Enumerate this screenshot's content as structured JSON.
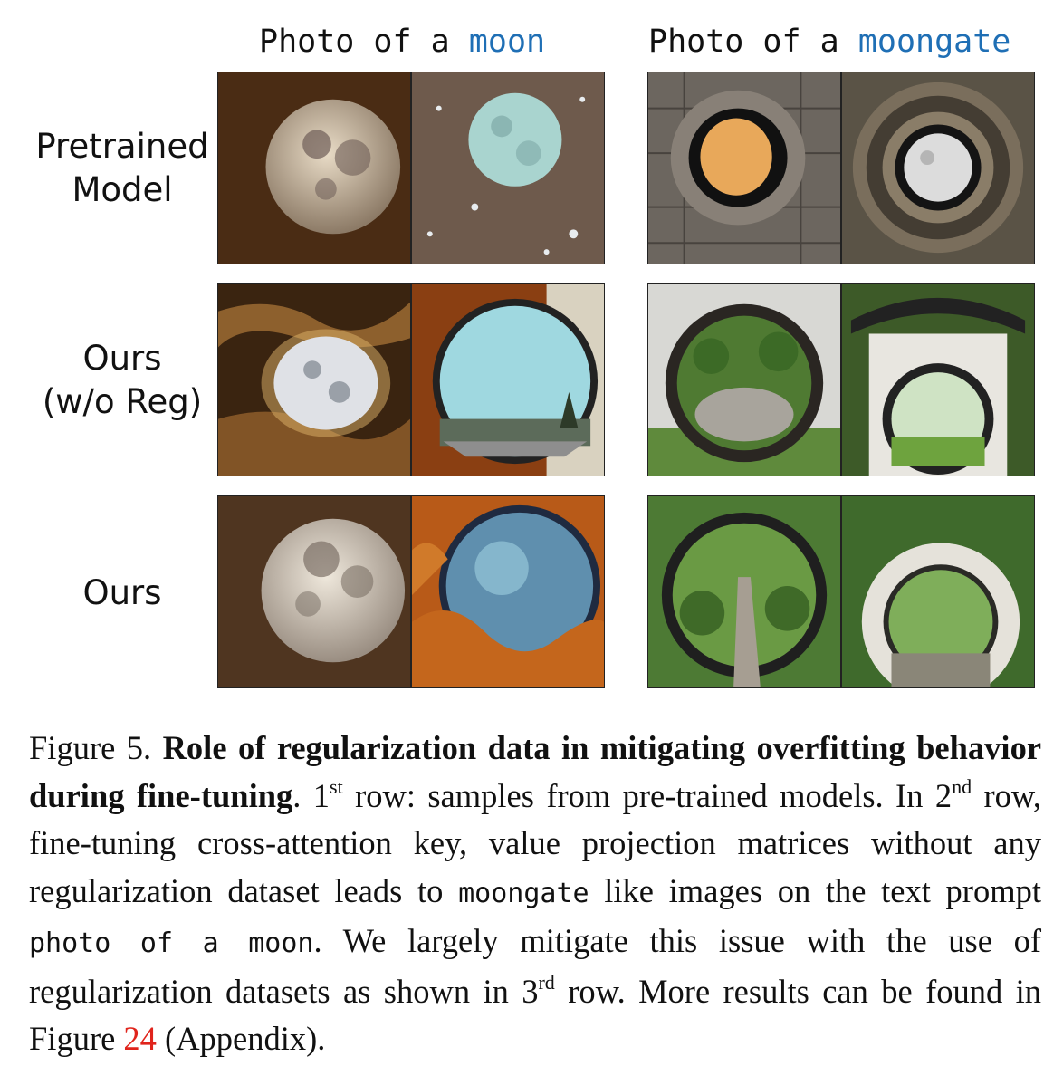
{
  "figure": {
    "columns": [
      {
        "prefix": "Photo of a ",
        "keyword": "moon"
      },
      {
        "prefix": "Photo of a ",
        "keyword": "moongate"
      }
    ],
    "rows": [
      {
        "line1": "Pretrained",
        "line2": "Model"
      },
      {
        "line1": "Ours",
        "line2": "(w/o Reg)"
      },
      {
        "line1": "Ours",
        "line2": ""
      }
    ],
    "images": [
      "moon-image",
      "moon-image",
      "moongate-image",
      "moongate-image",
      "moon-image",
      "moon-image",
      "moongate-image",
      "moongate-image",
      "moon-image",
      "moon-image",
      "moongate-image",
      "moongate-image"
    ]
  },
  "caption": {
    "label": "Figure 5.",
    "title": "Role of regularization data in mitigating overfitting behavior during fine-tuning",
    "t1": ". 1",
    "sup1": "st",
    "t2": " row: samples from pre-trained models. In 2",
    "sup2": "nd",
    "t3": " row, fine-tuning cross-attention key, value projection matrices without any regularization dataset leads to",
    "code1": "moongate",
    "t4": "like images on the text prompt",
    "code2": "photo of a moon",
    "t5": ". We largely mitigate this issue with the use of regularization datasets as shown in 3",
    "sup3": "rd",
    "t6": " row. More results can be found in Figure ",
    "ref": "24",
    "t7": " (Appendix)."
  }
}
